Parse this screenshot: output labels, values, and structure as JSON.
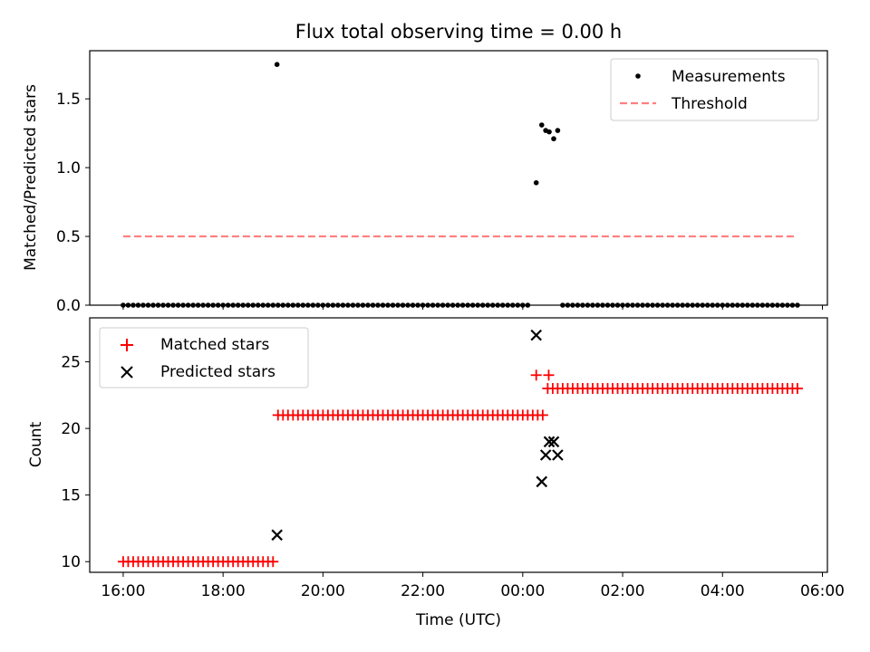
{
  "chart_data": {
    "type": "scatter",
    "title": "Flux total observing time = 0.00 h",
    "xlabel": "Time (UTC)",
    "x_ticks": [
      "16:00",
      "18:00",
      "20:00",
      "22:00",
      "00:00",
      "02:00",
      "04:00",
      "06:00"
    ],
    "x_range_hours": [
      15.33,
      30.1
    ],
    "top_panel": {
      "ylabel": "Matched/Predicted stars",
      "ylim": [
        0,
        1.85
      ],
      "y_ticks": [
        "0.0",
        "0.5",
        "1.0",
        "1.5"
      ],
      "legend": {
        "location": "upper right",
        "entries": [
          "Measurements",
          "Threshold"
        ]
      },
      "threshold": {
        "value": 0.5,
        "x_start_hours": 16.0,
        "x_end_hours": 29.5,
        "color": "#ff7f7f"
      },
      "measurement_segments": [
        {
          "start_hours": 16.0,
          "end_hours": 19.0,
          "step_hours": 0.1,
          "value": 0.0
        },
        {
          "start_hours": 19.1,
          "end_hours": 24.1,
          "step_hours": 0.1,
          "value": 0.0
        },
        {
          "start_hours": 24.8,
          "end_hours": 29.5,
          "step_hours": 0.1,
          "value": 0.0
        }
      ],
      "measurement_points": [
        {
          "x": 19.08,
          "y": 1.75
        },
        {
          "x": 24.27,
          "y": 0.89
        },
        {
          "x": 24.38,
          "y": 1.31
        },
        {
          "x": 24.46,
          "y": 1.27
        },
        {
          "x": 24.53,
          "y": 1.26
        },
        {
          "x": 24.62,
          "y": 1.21
        },
        {
          "x": 24.7,
          "y": 1.27
        }
      ]
    },
    "bottom_panel": {
      "ylabel": "Count",
      "ylim": [
        9.2,
        28.3
      ],
      "y_ticks": [
        "10",
        "15",
        "20",
        "25"
      ],
      "legend": {
        "location": "upper left",
        "entries": [
          "Matched stars",
          "Predicted stars"
        ]
      },
      "matched_segments": [
        {
          "start_hours": 16.0,
          "end_hours": 19.0,
          "step_hours": 0.1,
          "value": 10
        },
        {
          "start_hours": 19.1,
          "end_hours": 24.4,
          "step_hours": 0.1,
          "value": 21
        },
        {
          "start_hours": 24.5,
          "end_hours": 29.5,
          "step_hours": 0.1,
          "value": 23
        }
      ],
      "matched_points": [
        {
          "x": 24.27,
          "y": 24
        },
        {
          "x": 24.52,
          "y": 24
        }
      ],
      "predicted_points": [
        {
          "x": 19.08,
          "y": 12
        },
        {
          "x": 24.27,
          "y": 27
        },
        {
          "x": 24.38,
          "y": 16
        },
        {
          "x": 24.46,
          "y": 18
        },
        {
          "x": 24.53,
          "y": 19
        },
        {
          "x": 24.62,
          "y": 19
        },
        {
          "x": 24.7,
          "y": 18
        }
      ]
    },
    "colors": {
      "matched": "#ff0000",
      "predicted": "#000000",
      "measurement": "#000000",
      "threshold": "#ff7f7f"
    }
  }
}
